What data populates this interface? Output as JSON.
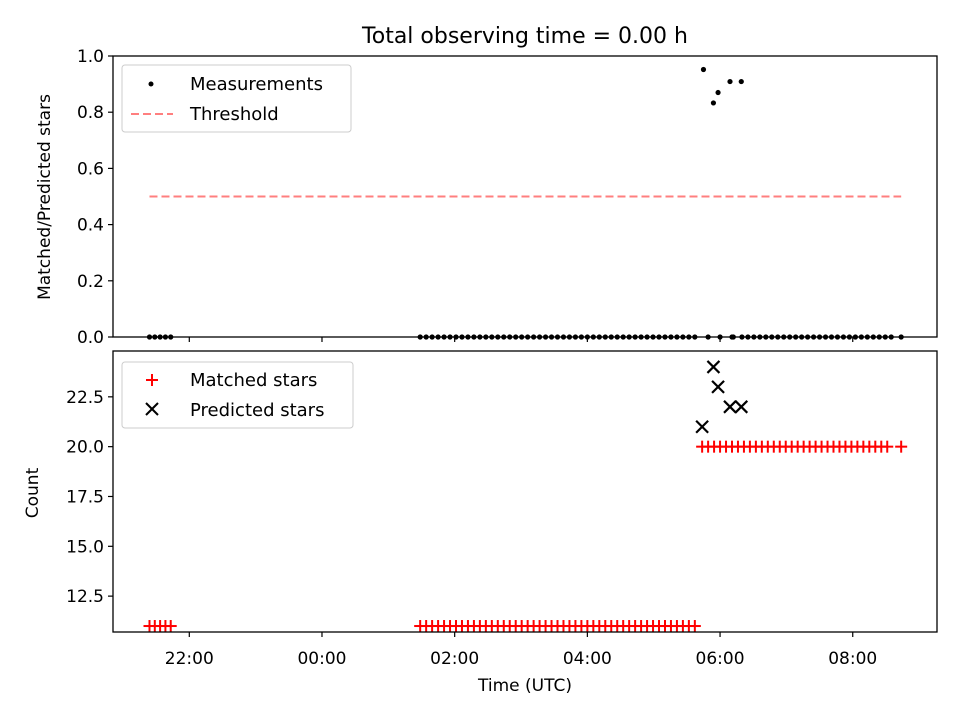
{
  "chart_data": [
    {
      "type": "scatter",
      "title": "Total observing time = 0.00 h",
      "xlabel": "",
      "ylabel": "Matched/Predicted stars",
      "ylim": [
        0,
        1.0
      ],
      "yticks": [
        "0.0",
        "0.2",
        "0.4",
        "0.6",
        "0.8",
        "1.0"
      ],
      "xlim_hours": [
        -3.15,
        9.27
      ],
      "legend": "top-left",
      "series": [
        {
          "name": "Measurements",
          "color": "#000000",
          "marker": "dot",
          "x": [
            -2.6,
            -2.52,
            -2.44,
            -2.36,
            -2.28,
            1.48,
            1.57,
            1.66,
            1.75,
            1.84,
            1.93,
            2.02,
            2.11,
            2.2,
            2.29,
            2.38,
            2.47,
            2.56,
            2.65,
            2.74,
            2.83,
            2.92,
            3.01,
            3.1,
            3.19,
            3.28,
            3.37,
            3.46,
            3.55,
            3.64,
            3.73,
            3.82,
            3.91,
            4.0,
            4.09,
            4.18,
            4.27,
            4.36,
            4.45,
            4.54,
            4.63,
            4.72,
            4.81,
            4.9,
            4.99,
            5.08,
            5.17,
            5.26,
            5.35,
            5.44,
            5.53,
            5.62,
            5.75,
            5.82,
            5.9,
            5.97,
            6.0,
            6.15,
            6.18,
            6.2,
            6.32,
            6.33,
            6.42,
            6.51,
            6.6,
            6.69,
            6.78,
            6.87,
            6.96,
            7.05,
            7.14,
            7.23,
            7.32,
            7.41,
            7.5,
            7.59,
            7.68,
            7.77,
            7.86,
            7.95,
            8.04,
            8.13,
            8.22,
            8.31,
            8.4,
            8.49,
            8.58,
            8.73
          ],
          "y": [
            0,
            0,
            0,
            0,
            0,
            0,
            0,
            0,
            0,
            0,
            0,
            0,
            0,
            0,
            0,
            0,
            0,
            0,
            0,
            0,
            0,
            0,
            0,
            0,
            0,
            0,
            0,
            0,
            0,
            0,
            0,
            0,
            0,
            0,
            0,
            0,
            0,
            0,
            0,
            0,
            0,
            0,
            0,
            0,
            0,
            0,
            0,
            0,
            0,
            0,
            0,
            0,
            0.952,
            0,
            0.833,
            0.87,
            0,
            0.909,
            0,
            0,
            0.909,
            0,
            0,
            0,
            0,
            0,
            0,
            0,
            0,
            0,
            0,
            0,
            0,
            0,
            0,
            0,
            0,
            0,
            0,
            0,
            0,
            0,
            0,
            0,
            0,
            0,
            0,
            0
          ]
        },
        {
          "name": "Threshold",
          "color": "#ff7f7f",
          "marker": "dashed-line",
          "x": [
            -2.6,
            8.73
          ],
          "y": [
            0.5,
            0.5
          ]
        }
      ]
    },
    {
      "type": "scatter",
      "title": "",
      "xlabel": "Time (UTC)",
      "ylabel": "Count",
      "ylim": [
        10.7,
        24.8
      ],
      "yticks": [
        "12.5",
        "15.0",
        "17.5",
        "20.0",
        "22.5"
      ],
      "xticks": [
        "22:00",
        "00:00",
        "02:00",
        "04:00",
        "06:00",
        "08:00"
      ],
      "xlim_hours": [
        -3.15,
        9.27
      ],
      "legend": "top-left",
      "series": [
        {
          "name": "Matched stars",
          "color": "#ff0000",
          "marker": "plus",
          "x": [
            -2.6,
            -2.52,
            -2.44,
            -2.36,
            -2.28,
            1.48,
            1.57,
            1.66,
            1.75,
            1.84,
            1.93,
            2.02,
            2.11,
            2.2,
            2.29,
            2.38,
            2.47,
            2.56,
            2.65,
            2.74,
            2.83,
            2.92,
            3.01,
            3.1,
            3.19,
            3.28,
            3.37,
            3.46,
            3.55,
            3.64,
            3.73,
            3.82,
            3.91,
            4.0,
            4.09,
            4.18,
            4.27,
            4.36,
            4.45,
            4.54,
            4.63,
            4.72,
            4.81,
            4.9,
            4.99,
            5.08,
            5.17,
            5.26,
            5.35,
            5.44,
            5.53,
            5.62,
            5.73,
            5.82,
            5.91,
            6.0,
            6.09,
            6.18,
            6.27,
            6.36,
            6.45,
            6.54,
            6.63,
            6.72,
            6.81,
            6.9,
            6.99,
            7.08,
            7.17,
            7.26,
            7.35,
            7.44,
            7.53,
            7.62,
            7.71,
            7.8,
            7.89,
            7.98,
            8.07,
            8.16,
            8.25,
            8.34,
            8.43,
            8.52,
            8.73
          ],
          "y": [
            11,
            11,
            11,
            11,
            11,
            11,
            11,
            11,
            11,
            11,
            11,
            11,
            11,
            11,
            11,
            11,
            11,
            11,
            11,
            11,
            11,
            11,
            11,
            11,
            11,
            11,
            11,
            11,
            11,
            11,
            11,
            11,
            11,
            11,
            11,
            11,
            11,
            11,
            11,
            11,
            11,
            11,
            11,
            11,
            11,
            11,
            11,
            11,
            11,
            11,
            11,
            11,
            20,
            20,
            20,
            20,
            20,
            20,
            20,
            20,
            20,
            20,
            20,
            20,
            20,
            20,
            20,
            20,
            20,
            20,
            20,
            20,
            20,
            20,
            20,
            20,
            20,
            20,
            20,
            20,
            20,
            20,
            20,
            20,
            20
          ]
        },
        {
          "name": "Predicted stars",
          "color": "#000000",
          "marker": "x",
          "x": [
            5.73,
            5.9,
            5.97,
            6.15,
            6.32
          ],
          "y": [
            21,
            24,
            23,
            22,
            22
          ]
        }
      ]
    }
  ]
}
